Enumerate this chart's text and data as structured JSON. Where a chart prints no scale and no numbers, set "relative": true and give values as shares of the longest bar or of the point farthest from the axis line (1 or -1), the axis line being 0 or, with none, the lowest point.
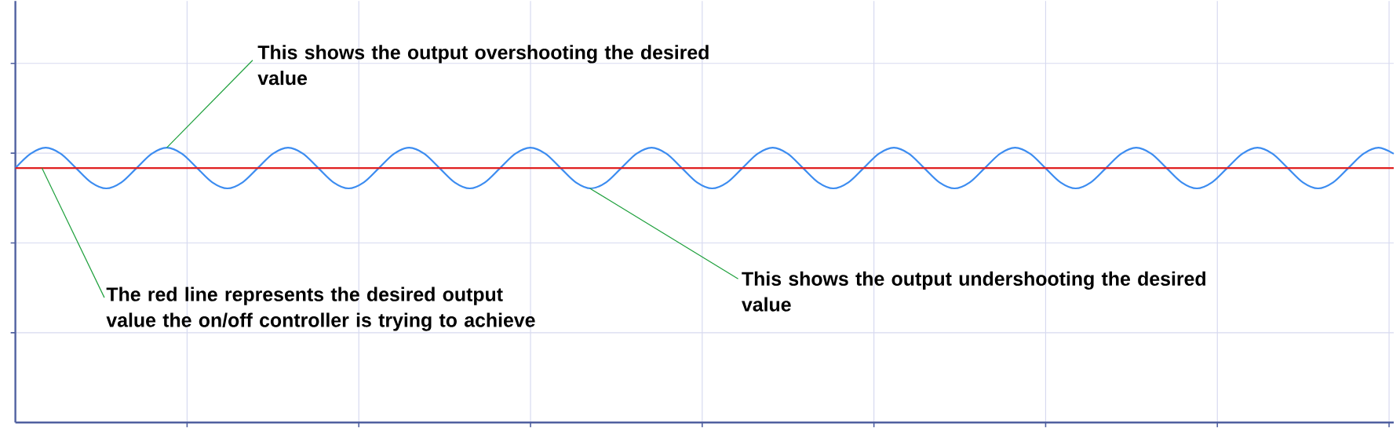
{
  "chart_data": {
    "type": "line",
    "relative": true,
    "grid": true,
    "tick_labels": false,
    "color": "#3c8cf0",
    "categories": [
      null,
      null,
      null,
      null,
      null,
      null,
      null,
      null,
      null,
      null,
      null,
      null,
      null,
      null,
      null,
      null,
      null,
      null,
      null,
      null,
      null,
      null,
      null,
      null,
      null,
      null,
      null,
      null,
      null,
      null,
      null,
      null,
      null,
      null,
      null,
      null,
      null,
      null,
      null,
      null,
      null,
      null,
      null,
      null,
      null,
      null,
      null,
      null,
      null,
      null,
      null,
      null,
      null,
      null,
      null,
      null,
      null,
      null,
      null,
      null,
      null,
      null,
      null,
      null,
      null,
      null,
      null,
      null,
      null,
      null,
      null,
      null,
      null,
      null,
      null,
      null,
      null,
      null,
      null,
      null,
      null,
      null,
      null,
      null,
      null,
      null,
      null,
      null,
      null,
      null,
      null,
      null
    ],
    "values": [
      0.926,
      0.978,
      1,
      0.978,
      0.926,
      0.874,
      0.852,
      0.874,
      0.926,
      0.978,
      1,
      0.978,
      0.926,
      0.874,
      0.852,
      0.874,
      0.926,
      0.978,
      1,
      0.978,
      0.926,
      0.874,
      0.852,
      0.874,
      0.926,
      0.978,
      1,
      0.978,
      0.926,
      0.874,
      0.852,
      0.874,
      0.926,
      0.978,
      1,
      0.978,
      0.926,
      0.874,
      0.852,
      0.874,
      0.926,
      0.978,
      1,
      0.978,
      0.926,
      0.874,
      0.852,
      0.874,
      0.926,
      0.978,
      1,
      0.978,
      0.926,
      0.874,
      0.852,
      0.874,
      0.926,
      0.978,
      1,
      0.978,
      0.926,
      0.874,
      0.852,
      0.874,
      0.926,
      0.978,
      1,
      0.978,
      0.926,
      0.874,
      0.852,
      0.874,
      0.926,
      0.978,
      1,
      0.978,
      0.926,
      0.874,
      0.852,
      0.874,
      0.926,
      0.978,
      1,
      0.978,
      0.926,
      0.874,
      0.852,
      0.874,
      0.926,
      0.978,
      1,
      0.978
    ],
    "ref_lines": [
      {
        "axis": "y",
        "value": 0.926,
        "color": "#e02020"
      }
    ],
    "annotations": [
      "This shows the output overshooting the desired value",
      "The red line represents the desired output value the on/off controller is trying to achieve",
      "This shows the output undershooting the desired value"
    ]
  }
}
